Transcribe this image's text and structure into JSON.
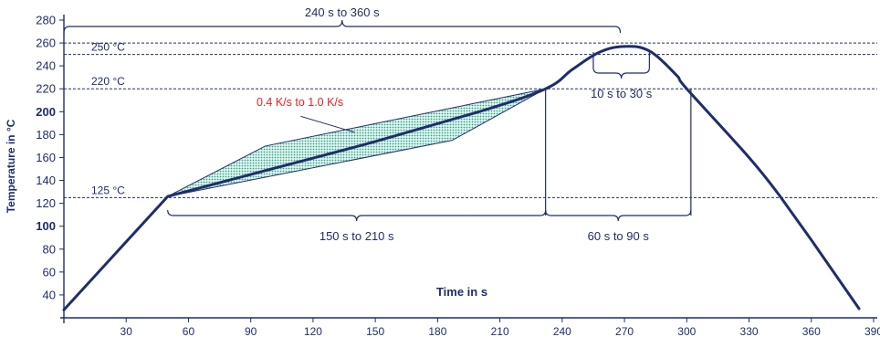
{
  "chart_data": {
    "type": "line",
    "title": "",
    "xlabel": "Time in s",
    "ylabel": "Temperature in °C",
    "xlim": [
      0,
      390
    ],
    "ylim": [
      20,
      280
    ],
    "x_ticks": [
      30,
      60,
      90,
      120,
      150,
      180,
      210,
      240,
      270,
      300,
      330,
      360,
      390
    ],
    "y_ticks": [
      40,
      60,
      80,
      100,
      120,
      140,
      160,
      180,
      200,
      220,
      240,
      260,
      280
    ],
    "grid": false,
    "colors": {
      "main": "#1f2d6b",
      "hatch": "#2aa88c",
      "annotation_red": "#e8231c"
    },
    "series": [
      {
        "values_xy": [
          [
            0,
            27
          ],
          [
            50,
            126
          ],
          [
            100,
            150
          ],
          [
            150,
            174
          ],
          [
            200,
            200
          ],
          [
            232,
            220
          ],
          [
            245,
            237
          ],
          [
            258,
            252
          ],
          [
            270,
            257
          ],
          [
            282,
            253
          ],
          [
            295,
            232
          ],
          [
            300,
            220
          ],
          [
            330,
            160
          ],
          [
            345,
            126
          ],
          [
            360,
            88
          ],
          [
            383,
            28
          ]
        ]
      }
    ],
    "preheat_band": {
      "upper": [
        [
          50,
          126
        ],
        [
          97,
          170
        ],
        [
          232,
          220
        ]
      ],
      "lower": [
        [
          50,
          126
        ],
        [
          187,
          175
        ],
        [
          232,
          220
        ]
      ]
    },
    "reference_lines": [
      {
        "y": 260,
        "label": ""
      },
      {
        "y": 250,
        "label": "250 °C"
      },
      {
        "y": 220,
        "label": "220 °C"
      },
      {
        "y": 125,
        "label": "125 °C"
      }
    ],
    "annotations": {
      "total_time": {
        "text": "240 s to 360 s",
        "x_from": 0,
        "x_to": 268
      },
      "preheat_time": {
        "text": "150 s to 210 s",
        "x_from": 50,
        "x_to": 232
      },
      "reflow_time": {
        "text": "60 s to 90 s",
        "x_from": 232,
        "x_to": 302
      },
      "peak_time": {
        "text": "10 s to 30 s",
        "x_from": 255,
        "x_to": 282
      },
      "ramp_rate": {
        "text": "0.4 K/s to 1.0 K/s"
      }
    }
  }
}
